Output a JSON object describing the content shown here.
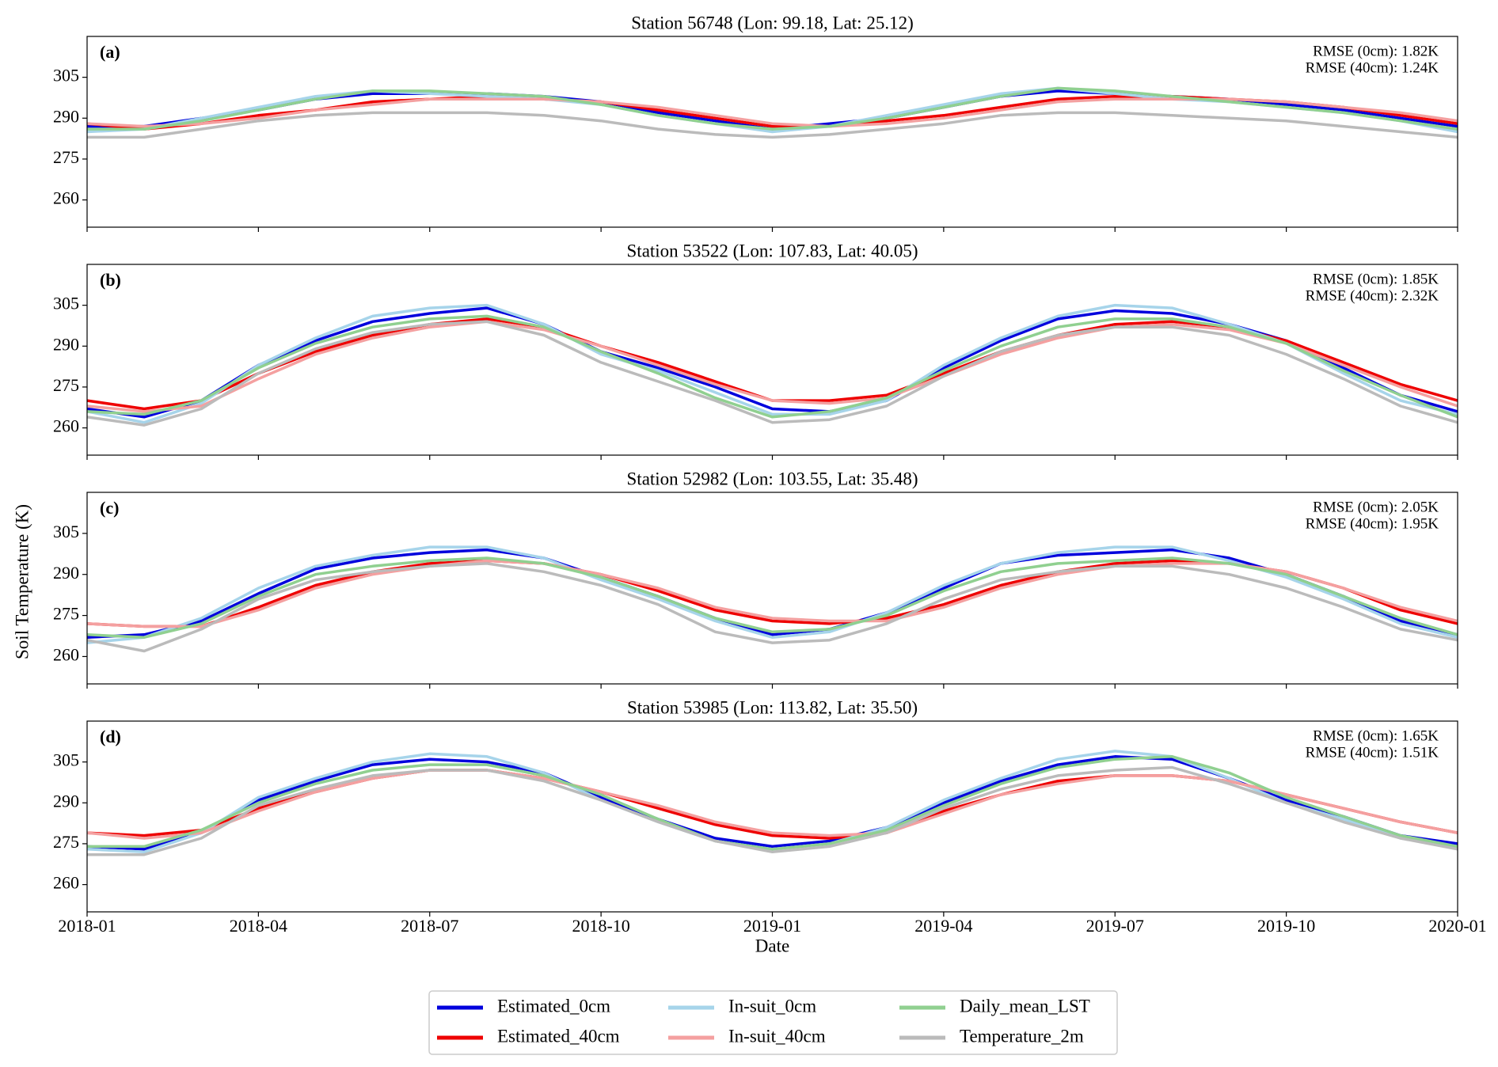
{
  "ylabel": "Soil Temperature (K)",
  "chart_data": [
    {
      "type": "line",
      "title": "Station 56748 (Lon: 99.18, Lat: 25.12)",
      "panel_label": "(a)",
      "annotations": [
        "RMSE (0cm): 1.82K",
        "RMSE (40cm): 1.24K"
      ],
      "x": [
        "2018-01",
        "2018-02",
        "2018-03",
        "2018-04",
        "2018-05",
        "2018-06",
        "2018-07",
        "2018-08",
        "2018-09",
        "2018-10",
        "2018-11",
        "2018-12",
        "2019-01",
        "2019-02",
        "2019-03",
        "2019-04",
        "2019-05",
        "2019-06",
        "2019-07",
        "2019-08",
        "2019-09",
        "2019-10",
        "2019-11",
        "2019-12",
        "2020-01"
      ],
      "xlim": [
        "2018-01",
        "2020-01"
      ],
      "xticks": [
        "2018-01",
        "2018-04",
        "2018-07",
        "2018-10",
        "2019-01",
        "2019-04",
        "2019-07",
        "2019-10",
        "2020-01"
      ],
      "ylim": [
        250,
        320
      ],
      "yticks": [
        260,
        275,
        290,
        305
      ],
      "series": [
        {
          "name": "Estimated_0cm",
          "color": "#0000dd",
          "values": [
            287,
            287,
            290,
            293,
            297,
            299,
            299,
            299,
            298,
            296,
            292,
            289,
            286,
            288,
            290,
            294,
            298,
            300,
            299,
            298,
            297,
            295,
            293,
            290,
            287
          ]
        },
        {
          "name": "Estimated_40cm",
          "color": "#ee0000",
          "values": [
            288,
            286,
            288,
            291,
            293,
            296,
            297,
            298,
            297,
            296,
            293,
            290,
            287,
            287,
            289,
            291,
            294,
            297,
            298,
            298,
            297,
            296,
            294,
            291,
            288
          ]
        },
        {
          "name": "In-suit_0cm",
          "color": "#a6d4ea",
          "values": [
            285,
            286,
            290,
            294,
            298,
            300,
            299,
            298,
            297,
            295,
            291,
            288,
            285,
            287,
            291,
            295,
            299,
            301,
            299,
            297,
            296,
            294,
            292,
            289,
            285
          ]
        },
        {
          "name": "In-suit_40cm",
          "color": "#f4a0a0",
          "values": [
            288,
            287,
            288,
            290,
            293,
            295,
            297,
            297,
            297,
            296,
            294,
            291,
            288,
            287,
            288,
            290,
            293,
            296,
            297,
            297,
            297,
            296,
            294,
            292,
            289
          ]
        },
        {
          "name": "Daily_mean_LST",
          "color": "#90d090",
          "values": [
            286,
            286,
            289,
            293,
            297,
            300,
            300,
            299,
            298,
            295,
            291,
            288,
            286,
            287,
            290,
            294,
            298,
            301,
            300,
            298,
            296,
            294,
            292,
            289,
            286
          ]
        },
        {
          "name": "Temperature_2m",
          "color": "#bbbbbb",
          "values": [
            283,
            283,
            286,
            289,
            291,
            292,
            292,
            292,
            291,
            289,
            286,
            284,
            283,
            284,
            286,
            288,
            291,
            292,
            292,
            291,
            290,
            289,
            287,
            285,
            283
          ]
        }
      ]
    },
    {
      "type": "line",
      "title": "Station 53522 (Lon: 107.83, Lat: 40.05)",
      "panel_label": "(b)",
      "annotations": [
        "RMSE (0cm): 1.85K",
        "RMSE (40cm): 2.32K"
      ],
      "x": [
        "2018-01",
        "2018-02",
        "2018-03",
        "2018-04",
        "2018-05",
        "2018-06",
        "2018-07",
        "2018-08",
        "2018-09",
        "2018-10",
        "2018-11",
        "2018-12",
        "2019-01",
        "2019-02",
        "2019-03",
        "2019-04",
        "2019-05",
        "2019-06",
        "2019-07",
        "2019-08",
        "2019-09",
        "2019-10",
        "2019-11",
        "2019-12",
        "2020-01"
      ],
      "xlim": [
        "2018-01",
        "2020-01"
      ],
      "xticks": [
        "2018-01",
        "2018-04",
        "2018-07",
        "2018-10",
        "2019-01",
        "2019-04",
        "2019-07",
        "2019-10",
        "2020-01"
      ],
      "ylim": [
        250,
        320
      ],
      "yticks": [
        260,
        275,
        290,
        305
      ],
      "series": [
        {
          "name": "Estimated_0cm",
          "color": "#0000dd",
          "values": [
            267,
            264,
            270,
            283,
            292,
            299,
            302,
            304,
            298,
            288,
            282,
            275,
            267,
            266,
            270,
            282,
            292,
            300,
            303,
            302,
            298,
            292,
            282,
            272,
            266
          ]
        },
        {
          "name": "Estimated_40cm",
          "color": "#ee0000",
          "values": [
            270,
            267,
            270,
            280,
            288,
            294,
            298,
            300,
            297,
            290,
            284,
            277,
            270,
            270,
            272,
            280,
            288,
            294,
            298,
            299,
            297,
            292,
            284,
            276,
            270
          ]
        },
        {
          "name": "In-suit_0cm",
          "color": "#a6d4ea",
          "values": [
            266,
            262,
            269,
            283,
            293,
            301,
            304,
            305,
            298,
            287,
            281,
            273,
            265,
            265,
            270,
            283,
            293,
            301,
            305,
            304,
            298,
            291,
            280,
            270,
            265
          ]
        },
        {
          "name": "In-suit_40cm",
          "color": "#f4a0a0",
          "values": [
            268,
            266,
            268,
            278,
            287,
            293,
            297,
            299,
            296,
            290,
            283,
            276,
            270,
            269,
            271,
            279,
            287,
            293,
            297,
            298,
            296,
            291,
            283,
            275,
            268
          ]
        },
        {
          "name": "Daily_mean_LST",
          "color": "#90d090",
          "values": [
            266,
            265,
            270,
            282,
            291,
            297,
            300,
            301,
            297,
            288,
            280,
            271,
            264,
            266,
            271,
            281,
            290,
            297,
            300,
            300,
            297,
            291,
            281,
            272,
            264
          ]
        },
        {
          "name": "Temperature_2m",
          "color": "#bbbbbb",
          "values": [
            264,
            261,
            267,
            280,
            289,
            295,
            298,
            299,
            294,
            284,
            277,
            270,
            262,
            263,
            268,
            279,
            288,
            294,
            297,
            297,
            294,
            287,
            278,
            268,
            262
          ]
        }
      ]
    },
    {
      "type": "line",
      "title": "Station 52982 (Lon: 103.55, Lat: 35.48)",
      "panel_label": "(c)",
      "annotations": [
        "RMSE (0cm): 2.05K",
        "RMSE (40cm): 1.95K"
      ],
      "x": [
        "2018-01",
        "2018-02",
        "2018-03",
        "2018-04",
        "2018-05",
        "2018-06",
        "2018-07",
        "2018-08",
        "2018-09",
        "2018-10",
        "2018-11",
        "2018-12",
        "2019-01",
        "2019-02",
        "2019-03",
        "2019-04",
        "2019-05",
        "2019-06",
        "2019-07",
        "2019-08",
        "2019-09",
        "2019-10",
        "2019-11",
        "2019-12",
        "2020-01"
      ],
      "xlim": [
        "2018-01",
        "2020-01"
      ],
      "xticks": [
        "2018-01",
        "2018-04",
        "2018-07",
        "2018-10",
        "2019-01",
        "2019-04",
        "2019-07",
        "2019-10",
        "2020-01"
      ],
      "ylim": [
        250,
        320
      ],
      "yticks": [
        260,
        275,
        290,
        305
      ],
      "series": [
        {
          "name": "Estimated_0cm",
          "color": "#0000dd",
          "values": [
            267,
            268,
            273,
            283,
            292,
            296,
            298,
            299,
            296,
            289,
            282,
            274,
            268,
            270,
            276,
            285,
            294,
            297,
            298,
            299,
            296,
            290,
            282,
            273,
            268
          ]
        },
        {
          "name": "Estimated_40cm",
          "color": "#ee0000",
          "values": [
            272,
            271,
            271,
            278,
            286,
            291,
            294,
            295,
            294,
            290,
            284,
            277,
            273,
            272,
            274,
            279,
            286,
            291,
            294,
            295,
            294,
            291,
            285,
            277,
            272
          ]
        },
        {
          "name": "In-suit_0cm",
          "color": "#a6d4ea",
          "values": [
            265,
            267,
            274,
            285,
            293,
            297,
            300,
            300,
            296,
            288,
            281,
            273,
            267,
            269,
            276,
            286,
            294,
            298,
            300,
            300,
            295,
            289,
            281,
            272,
            267
          ]
        },
        {
          "name": "In-suit_40cm",
          "color": "#f4a0a0",
          "values": [
            272,
            271,
            271,
            277,
            285,
            290,
            293,
            295,
            294,
            290,
            285,
            278,
            274,
            273,
            273,
            278,
            285,
            290,
            293,
            294,
            294,
            291,
            285,
            278,
            273
          ]
        },
        {
          "name": "Daily_mean_LST",
          "color": "#90d090",
          "values": [
            268,
            267,
            272,
            282,
            290,
            293,
            295,
            296,
            294,
            289,
            282,
            274,
            269,
            270,
            275,
            284,
            291,
            294,
            295,
            296,
            294,
            290,
            282,
            274,
            268
          ]
        },
        {
          "name": "Temperature_2m",
          "color": "#bbbbbb",
          "values": [
            266,
            262,
            270,
            281,
            288,
            291,
            293,
            294,
            291,
            286,
            279,
            269,
            265,
            266,
            272,
            281,
            288,
            291,
            293,
            293,
            290,
            285,
            278,
            270,
            266
          ]
        }
      ]
    },
    {
      "type": "line",
      "title": "Station 53985 (Lon: 113.82, Lat: 35.50)",
      "panel_label": "(d)",
      "annotations": [
        "RMSE (0cm): 1.65K",
        "RMSE (40cm): 1.51K"
      ],
      "x": [
        "2018-01",
        "2018-02",
        "2018-03",
        "2018-04",
        "2018-05",
        "2018-06",
        "2018-07",
        "2018-08",
        "2018-09",
        "2018-10",
        "2018-11",
        "2018-12",
        "2019-01",
        "2019-02",
        "2019-03",
        "2019-04",
        "2019-05",
        "2019-06",
        "2019-07",
        "2019-08",
        "2019-09",
        "2019-10",
        "2019-11",
        "2019-12",
        "2020-01"
      ],
      "xlim": [
        "2018-01",
        "2020-01"
      ],
      "xticks": [
        "2018-01",
        "2018-04",
        "2018-07",
        "2018-10",
        "2019-01",
        "2019-04",
        "2019-07",
        "2019-10",
        "2020-01"
      ],
      "xlabel": "Date",
      "ylim": [
        250,
        320
      ],
      "yticks": [
        260,
        275,
        290,
        305
      ],
      "series": [
        {
          "name": "Estimated_0cm",
          "color": "#0000dd",
          "values": [
            274,
            273,
            279,
            291,
            298,
            304,
            306,
            305,
            301,
            292,
            284,
            277,
            274,
            276,
            281,
            290,
            298,
            304,
            307,
            306,
            299,
            291,
            285,
            278,
            275
          ]
        },
        {
          "name": "Estimated_40cm",
          "color": "#ee0000",
          "values": [
            279,
            278,
            280,
            288,
            294,
            299,
            302,
            302,
            299,
            294,
            288,
            282,
            278,
            277,
            279,
            287,
            293,
            298,
            300,
            300,
            298,
            293,
            288,
            283,
            279
          ]
        },
        {
          "name": "In-suit_0cm",
          "color": "#a6d4ea",
          "values": [
            273,
            272,
            279,
            292,
            299,
            305,
            308,
            307,
            301,
            291,
            283,
            276,
            273,
            275,
            281,
            291,
            299,
            306,
            309,
            307,
            299,
            290,
            284,
            277,
            274
          ]
        },
        {
          "name": "In-suit_40cm",
          "color": "#f4a0a0",
          "values": [
            279,
            277,
            279,
            287,
            294,
            299,
            302,
            302,
            299,
            294,
            289,
            283,
            279,
            278,
            279,
            286,
            293,
            297,
            300,
            300,
            298,
            293,
            288,
            283,
            279
          ]
        },
        {
          "name": "Daily_mean_LST",
          "color": "#90d090",
          "values": [
            274,
            274,
            280,
            290,
            297,
            302,
            304,
            304,
            300,
            293,
            284,
            276,
            273,
            275,
            280,
            289,
            297,
            303,
            306,
            307,
            301,
            292,
            285,
            278,
            274
          ]
        },
        {
          "name": "Temperature_2m",
          "color": "#bbbbbb",
          "values": [
            271,
            271,
            277,
            289,
            295,
            300,
            302,
            302,
            298,
            291,
            283,
            276,
            272,
            274,
            279,
            288,
            295,
            300,
            302,
            303,
            297,
            290,
            283,
            277,
            273
          ]
        }
      ]
    }
  ]
}
